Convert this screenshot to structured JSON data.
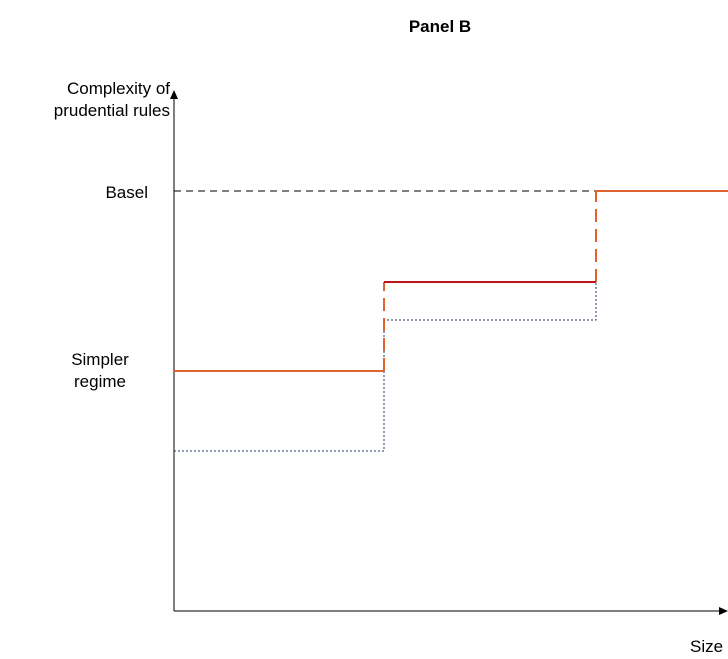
{
  "title": "Panel B",
  "y_axis_label": "Complexity of\nprudential rules",
  "x_axis_label": "Size",
  "y_levels": {
    "basel": "Basel",
    "simpler": "Simpler\nregime"
  },
  "colors": {
    "orange": "#e0622d",
    "red": "#c0121a",
    "navy": "#1f3864",
    "black": "#000000"
  }
}
